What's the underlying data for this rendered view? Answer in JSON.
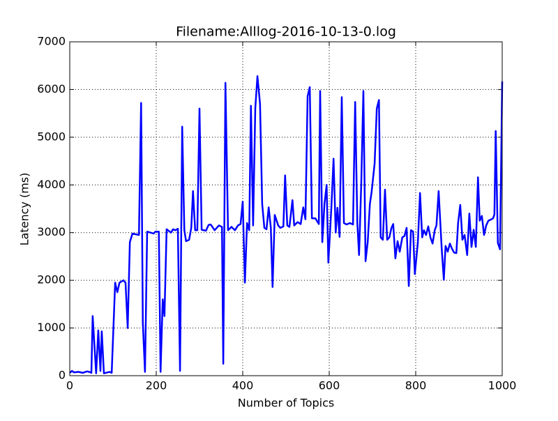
{
  "chart_data": {
    "type": "line",
    "title": "Filename:Alllog-2016-10-13-0.log",
    "x_label": "Number of Topics",
    "y_label": "Latency (ms)",
    "x": [
      0,
      5,
      10,
      20,
      30,
      40,
      45,
      50,
      53,
      61,
      66,
      71,
      74,
      79,
      92,
      97,
      105,
      110,
      115,
      124,
      129,
      134,
      139,
      145,
      160,
      165,
      169,
      174,
      179,
      194,
      198,
      206,
      210,
      215,
      219,
      224,
      234,
      239,
      244,
      250,
      255,
      260,
      265,
      269,
      276,
      281,
      285,
      290,
      295,
      300,
      305,
      315,
      321,
      326,
      335,
      345,
      352,
      355,
      360,
      366,
      374,
      382,
      389,
      395,
      400,
      405,
      410,
      415,
      419,
      424,
      429,
      434,
      440,
      445,
      450,
      455,
      460,
      465,
      469,
      474,
      482,
      487,
      494,
      498,
      503,
      508,
      515,
      519,
      527,
      534,
      540,
      545,
      550,
      555,
      560,
      568,
      576,
      579,
      584,
      589,
      594,
      598,
      605,
      610,
      615,
      619,
      624,
      629,
      634,
      640,
      648,
      655,
      660,
      665,
      669,
      674,
      679,
      684,
      689,
      694,
      698,
      705,
      710,
      715,
      719,
      724,
      729,
      734,
      739,
      744,
      748,
      753,
      758,
      763,
      769,
      774,
      779,
      784,
      789,
      794,
      798,
      805,
      810,
      815,
      819,
      824,
      829,
      834,
      839,
      844,
      848,
      853,
      860,
      865,
      869,
      874,
      879,
      884,
      889,
      894,
      898,
      903,
      908,
      913,
      919,
      924,
      929,
      934,
      939,
      944,
      948,
      953,
      958,
      963,
      968,
      973,
      979,
      982,
      985,
      990,
      995,
      1000
    ],
    "values": [
      60,
      100,
      70,
      80,
      60,
      90,
      80,
      60,
      1250,
      50,
      950,
      100,
      930,
      50,
      80,
      60,
      1950,
      1750,
      1950,
      2000,
      1950,
      1000,
      2800,
      2980,
      2950,
      5720,
      1100,
      80,
      3020,
      2980,
      3020,
      3020,
      80,
      1600,
      1250,
      3070,
      3000,
      3070,
      3050,
      3080,
      100,
      5220,
      3050,
      2820,
      2850,
      3100,
      3870,
      3050,
      3050,
      5600,
      3060,
      3040,
      3160,
      3170,
      3050,
      3150,
      3120,
      250,
      6140,
      3050,
      3120,
      3050,
      3150,
      3180,
      3650,
      1950,
      3200,
      3050,
      5660,
      3150,
      5600,
      6280,
      5700,
      3600,
      3100,
      3070,
      3530,
      3100,
      1860,
      3370,
      3150,
      3100,
      3130,
      4200,
      3150,
      3120,
      3680,
      3150,
      3220,
      3180,
      3530,
      3280,
      5860,
      6050,
      3300,
      3300,
      3180,
      5970,
      2800,
      3600,
      4000,
      2370,
      3530,
      4550,
      3000,
      3520,
      2910,
      5840,
      3200,
      3170,
      3200,
      3170,
      5740,
      3200,
      2530,
      4000,
      5970,
      2400,
      2800,
      3600,
      3850,
      4450,
      5600,
      5780,
      2900,
      2850,
      3900,
      2850,
      2900,
      3100,
      3180,
      2460,
      2820,
      2600,
      2900,
      2930,
      3100,
      1880,
      3050,
      3020,
      2130,
      2800,
      3830,
      2900,
      3050,
      2950,
      3130,
      2900,
      2770,
      3050,
      3150,
      3870,
      2680,
      2010,
      2720,
      2600,
      2770,
      2660,
      2580,
      2570,
      3200,
      3580,
      2850,
      2950,
      2530,
      3400,
      2700,
      3060,
      2700,
      4160,
      3250,
      3350,
      2950,
      3150,
      3250,
      3270,
      3300,
      3380,
      5130,
      2780,
      2650,
      6170
    ],
    "color": "#0000ff",
    "xlim": [
      0,
      1000
    ],
    "xticks": [
      0,
      200,
      400,
      600,
      800,
      1000
    ],
    "ylim": [
      0,
      7000
    ],
    "yticks": [
      0,
      1000,
      2000,
      3000,
      4000,
      5000,
      6000,
      7000
    ],
    "grid": true
  }
}
